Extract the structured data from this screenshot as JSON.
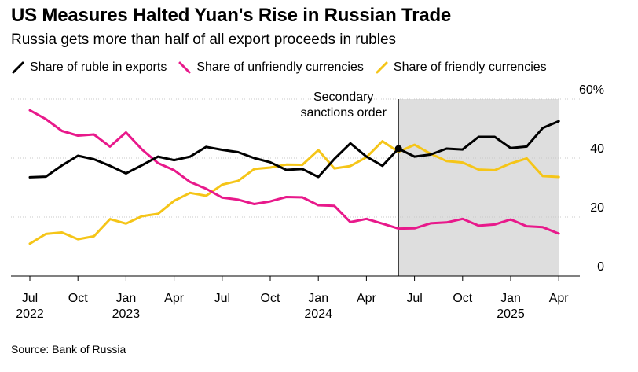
{
  "title": "US Measures Halted Yuan's Rise in Russian Trade",
  "subtitle": "Russia gets more than half of all export proceeds in rubles",
  "source": "Source: Bank of Russia",
  "chart_data": {
    "type": "line",
    "title": "US Measures Halted Yuan's Rise in Russian Trade",
    "subtitle": "Russia gets more than half of all export proceeds in rubles",
    "x": [
      "2022-07",
      "2022-08",
      "2022-09",
      "2022-10",
      "2022-11",
      "2022-12",
      "2023-01",
      "2023-02",
      "2023-03",
      "2023-04",
      "2023-05",
      "2023-06",
      "2023-07",
      "2023-08",
      "2023-09",
      "2023-10",
      "2023-11",
      "2023-12",
      "2024-01",
      "2024-02",
      "2024-03",
      "2024-04",
      "2024-05",
      "2024-06",
      "2024-07",
      "2024-08",
      "2024-09",
      "2024-10",
      "2024-11",
      "2024-12",
      "2025-01",
      "2025-02",
      "2025-03",
      "2025-04"
    ],
    "x_ticks": [
      {
        "x": "2022-07",
        "label": "Jul",
        "year": "2022"
      },
      {
        "x": "2022-10",
        "label": "Oct",
        "year": ""
      },
      {
        "x": "2023-01",
        "label": "Jan",
        "year": "2023"
      },
      {
        "x": "2023-04",
        "label": "Apr",
        "year": ""
      },
      {
        "x": "2023-07",
        "label": "Jul",
        "year": ""
      },
      {
        "x": "2023-10",
        "label": "Oct",
        "year": ""
      },
      {
        "x": "2024-01",
        "label": "Jan",
        "year": "2024"
      },
      {
        "x": "2024-04",
        "label": "Apr",
        "year": ""
      },
      {
        "x": "2024-07",
        "label": "Jul",
        "year": ""
      },
      {
        "x": "2024-10",
        "label": "Oct",
        "year": ""
      },
      {
        "x": "2025-01",
        "label": "Jan",
        "year": "2025"
      },
      {
        "x": "2025-04",
        "label": "Apr",
        "year": ""
      }
    ],
    "y_ticks": [
      {
        "value": 0,
        "label": "0"
      },
      {
        "value": 20,
        "label": "20"
      },
      {
        "value": 40,
        "label": "40"
      },
      {
        "value": 60,
        "label": "60%"
      }
    ],
    "ylim": [
      0,
      60
    ],
    "grid": "horizontal",
    "legend_position": "top",
    "series": [
      {
        "name": "Share of ruble in exports",
        "color": "#000000",
        "values": [
          33.5,
          33.7,
          37.5,
          40.8,
          39.6,
          37.4,
          34.8,
          37.6,
          40.5,
          39.3,
          40.5,
          43.8,
          42.8,
          42.0,
          40.0,
          38.6,
          36.0,
          36.3,
          33.6,
          39.7,
          45.0,
          40.5,
          37.4,
          43.2,
          40.5,
          41.2,
          43.2,
          42.9,
          47.2,
          47.2,
          43.4,
          43.9,
          50.2,
          52.5
        ]
      },
      {
        "name": "Share of unfriendly currencies",
        "color": "#e8198b",
        "values": [
          56.2,
          53.2,
          49.2,
          47.6,
          48.0,
          43.9,
          48.7,
          42.9,
          38.3,
          35.9,
          31.9,
          29.6,
          26.6,
          25.9,
          24.4,
          25.3,
          26.8,
          26.7,
          24.0,
          23.8,
          18.3,
          19.4,
          17.8,
          16.1,
          16.2,
          17.9,
          18.2,
          19.4,
          17.1,
          17.5,
          19.2,
          16.9,
          16.6,
          14.4
        ]
      },
      {
        "name": "Share of friendly currencies",
        "color": "#f5c518",
        "values": [
          11.0,
          14.3,
          14.8,
          12.5,
          13.5,
          19.3,
          17.8,
          20.3,
          21.1,
          25.5,
          28.2,
          27.2,
          31.0,
          32.3,
          36.3,
          36.8,
          37.8,
          37.7,
          42.7,
          36.5,
          37.3,
          40.3,
          45.7,
          42.1,
          44.5,
          41.5,
          39.0,
          38.5,
          36.1,
          35.9,
          38.2,
          39.9,
          33.9,
          33.6
        ]
      }
    ],
    "annotations": [
      {
        "label_lines": [
          "Secondary",
          "sanctions order"
        ],
        "x": "2024-06",
        "shaded_from": "2024-06",
        "shaded_to": "2025-04",
        "shade_color": "#dedede"
      }
    ]
  }
}
